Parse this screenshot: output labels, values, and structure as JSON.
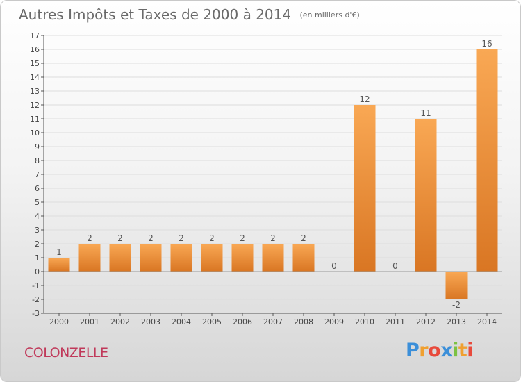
{
  "header": {
    "title": "Autres Impôts et Taxes de 2000 à 2014",
    "unit": "(en milliers d'€)"
  },
  "footer": {
    "commune": "COLONZELLE",
    "logo_letters": [
      "P",
      "r",
      "o",
      "x",
      "i",
      "t",
      "i"
    ],
    "logo_colors": [
      "#3b8fd9",
      "#f0a030",
      "#e84a3c",
      "#3b8fd9",
      "#7cc242",
      "#f0a030",
      "#e84a3c"
    ]
  },
  "colors": {
    "bar_light": "#f9a854",
    "bar_dark": "#d97623",
    "axis": "#555555",
    "grid": "#dddddd",
    "title": "#6a6a6a",
    "commune": "#c0395a"
  },
  "chart_data": {
    "type": "bar",
    "categories": [
      "2000",
      "2001",
      "2002",
      "2003",
      "2004",
      "2005",
      "2006",
      "2007",
      "2008",
      "2009",
      "2010",
      "2011",
      "2012",
      "2013",
      "2014"
    ],
    "values": [
      1,
      2,
      2,
      2,
      2,
      2,
      2,
      2,
      2,
      0,
      12,
      0,
      11,
      -2,
      16
    ],
    "ylim": [
      -3,
      17
    ],
    "yticks": [
      -3,
      -2,
      -1,
      0,
      1,
      2,
      3,
      4,
      5,
      6,
      7,
      8,
      9,
      10,
      11,
      12,
      13,
      14,
      15,
      16,
      17
    ],
    "grid": true,
    "legend": "none"
  }
}
